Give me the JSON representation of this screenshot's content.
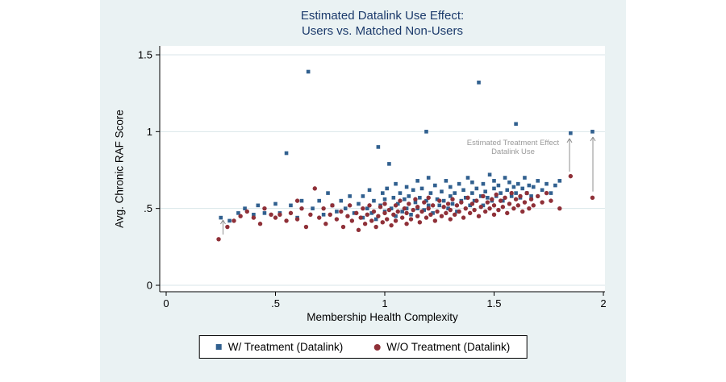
{
  "chart_data": {
    "type": "scatter",
    "title": {
      "line1": "Estimated Datalink Use Effect:",
      "line2": "Users vs. Matched Non-Users",
      "color": "#1b3a6b"
    },
    "x_axis": {
      "label": "Membership Health Complexity",
      "range": [
        0,
        2
      ],
      "tick_values": [
        0,
        0.5,
        1,
        1.5,
        2
      ],
      "tick_labels": [
        "0",
        ".5",
        "1",
        "1.5",
        "2"
      ]
    },
    "y_axis": {
      "label": "Avg. Chronic RAF Score",
      "range": [
        0,
        1.5
      ],
      "tick_values": [
        0,
        0.5,
        1,
        1.5
      ],
      "tick_labels": [
        "0",
        ".5",
        "1",
        "1.5"
      ]
    },
    "grid": "horizontal",
    "legend_position": "bottom",
    "annotation": {
      "line1": "Estimated Treatment Effect",
      "line2": "Datalink Use",
      "color": "#9a9a9a"
    },
    "arrow_color": "#8f8f8f",
    "arrows": [
      {
        "x": 0.26,
        "from": 0.33,
        "to": 0.425
      },
      {
        "x": 1.845,
        "from": 0.74,
        "to": 0.955
      },
      {
        "x": 1.952,
        "from": 0.61,
        "to": 0.965
      }
    ],
    "colors": {
      "background": "#eaf2f3",
      "plot_bg": "#ffffff",
      "grid": "#d9e6ea",
      "axis": "#000000"
    },
    "series": [
      {
        "name": "W/ Treatment (Datalink)",
        "marker": "square",
        "color": "#31608f",
        "points": [
          [
            0.25,
            0.44
          ],
          [
            0.29,
            0.42
          ],
          [
            0.33,
            0.47
          ],
          [
            0.36,
            0.5
          ],
          [
            0.4,
            0.46
          ],
          [
            0.42,
            0.52
          ],
          [
            0.45,
            0.47
          ],
          [
            0.5,
            0.53
          ],
          [
            0.52,
            0.47
          ],
          [
            0.55,
            0.86
          ],
          [
            0.57,
            0.52
          ],
          [
            0.6,
            0.44
          ],
          [
            0.62,
            0.55
          ],
          [
            0.65,
            1.39
          ],
          [
            0.67,
            0.5
          ],
          [
            0.7,
            0.55
          ],
          [
            0.72,
            0.46
          ],
          [
            0.74,
            0.6
          ],
          [
            0.76,
            0.52
          ],
          [
            0.78,
            0.48
          ],
          [
            0.8,
            0.55
          ],
          [
            0.82,
            0.5
          ],
          [
            0.84,
            0.58
          ],
          [
            0.86,
            0.47
          ],
          [
            0.88,
            0.53
          ],
          [
            0.9,
            0.44
          ],
          [
            0.9,
            0.58
          ],
          [
            0.92,
            0.5
          ],
          [
            0.93,
            0.62
          ],
          [
            0.94,
            0.47
          ],
          [
            0.95,
            0.55
          ],
          [
            0.96,
            0.43
          ],
          [
            0.97,
            0.9
          ],
          [
            0.98,
            0.52
          ],
          [
            0.99,
            0.6
          ],
          [
            1.0,
            0.48
          ],
          [
            1.0,
            0.56
          ],
          [
            1.01,
            0.63
          ],
          [
            1.02,
            0.79
          ],
          [
            1.03,
            0.5
          ],
          [
            1.04,
            0.57
          ],
          [
            1.05,
            0.45
          ],
          [
            1.05,
            0.66
          ],
          [
            1.06,
            0.53
          ],
          [
            1.07,
            0.6
          ],
          [
            1.08,
            0.48
          ],
          [
            1.09,
            0.56
          ],
          [
            1.1,
            0.64
          ],
          [
            1.1,
            0.5
          ],
          [
            1.11,
            0.58
          ],
          [
            1.12,
            0.46
          ],
          [
            1.13,
            0.62
          ],
          [
            1.14,
            0.54
          ],
          [
            1.15,
            0.68
          ],
          [
            1.15,
            0.5
          ],
          [
            1.16,
            0.57
          ],
          [
            1.17,
            0.63
          ],
          [
            1.18,
            0.49
          ],
          [
            1.19,
            1.0
          ],
          [
            1.19,
            0.55
          ],
          [
            1.2,
            0.7
          ],
          [
            1.2,
            0.52
          ],
          [
            1.21,
            0.6
          ],
          [
            1.22,
            0.47
          ],
          [
            1.23,
            0.65
          ],
          [
            1.24,
            0.56
          ],
          [
            1.25,
            0.52
          ],
          [
            1.26,
            0.61
          ],
          [
            1.27,
            0.55
          ],
          [
            1.28,
            0.68
          ],
          [
            1.29,
            0.5
          ],
          [
            1.3,
            0.58
          ],
          [
            1.3,
            0.64
          ],
          [
            1.31,
            0.53
          ],
          [
            1.32,
            0.6
          ],
          [
            1.33,
            0.48
          ],
          [
            1.34,
            0.66
          ],
          [
            1.35,
            0.55
          ],
          [
            1.36,
            0.62
          ],
          [
            1.37,
            0.57
          ],
          [
            1.38,
            0.7
          ],
          [
            1.39,
            0.52
          ],
          [
            1.4,
            0.6
          ],
          [
            1.4,
            0.67
          ],
          [
            1.41,
            0.55
          ],
          [
            1.42,
            0.63
          ],
          [
            1.43,
            1.32
          ],
          [
            1.44,
            0.58
          ],
          [
            1.45,
            0.66
          ],
          [
            1.45,
            0.52
          ],
          [
            1.46,
            0.61
          ],
          [
            1.47,
            0.57
          ],
          [
            1.48,
            0.72
          ],
          [
            1.49,
            0.55
          ],
          [
            1.5,
            0.63
          ],
          [
            1.5,
            0.68
          ],
          [
            1.51,
            0.58
          ],
          [
            1.52,
            0.65
          ],
          [
            1.53,
            0.6
          ],
          [
            1.54,
            0.55
          ],
          [
            1.55,
            0.7
          ],
          [
            1.56,
            0.62
          ],
          [
            1.57,
            0.67
          ],
          [
            1.58,
            0.58
          ],
          [
            1.59,
            0.64
          ],
          [
            1.6,
            1.05
          ],
          [
            1.6,
            0.6
          ],
          [
            1.61,
            0.66
          ],
          [
            1.62,
            0.57
          ],
          [
            1.63,
            0.63
          ],
          [
            1.64,
            0.7
          ],
          [
            1.65,
            0.6
          ],
          [
            1.66,
            0.65
          ],
          [
            1.67,
            0.58
          ],
          [
            1.68,
            0.64
          ],
          [
            1.7,
            0.68
          ],
          [
            1.72,
            0.62
          ],
          [
            1.74,
            0.66
          ],
          [
            1.76,
            0.6
          ],
          [
            1.78,
            0.65
          ],
          [
            1.8,
            0.68
          ],
          [
            1.85,
            0.99
          ],
          [
            1.95,
            1.0
          ]
        ]
      },
      {
        "name": "W/O Treatment (Datalink)",
        "marker": "circle",
        "color": "#8f3038",
        "points": [
          [
            0.24,
            0.3
          ],
          [
            0.28,
            0.38
          ],
          [
            0.31,
            0.42
          ],
          [
            0.34,
            0.45
          ],
          [
            0.37,
            0.48
          ],
          [
            0.4,
            0.44
          ],
          [
            0.43,
            0.4
          ],
          [
            0.45,
            0.5
          ],
          [
            0.48,
            0.46
          ],
          [
            0.5,
            0.44
          ],
          [
            0.52,
            0.46
          ],
          [
            0.55,
            0.42
          ],
          [
            0.57,
            0.47
          ],
          [
            0.6,
            0.55
          ],
          [
            0.6,
            0.43
          ],
          [
            0.62,
            0.5
          ],
          [
            0.64,
            0.38
          ],
          [
            0.66,
            0.46
          ],
          [
            0.68,
            0.63
          ],
          [
            0.7,
            0.44
          ],
          [
            0.72,
            0.5
          ],
          [
            0.73,
            0.4
          ],
          [
            0.75,
            0.46
          ],
          [
            0.76,
            0.52
          ],
          [
            0.78,
            0.43
          ],
          [
            0.8,
            0.48
          ],
          [
            0.81,
            0.38
          ],
          [
            0.83,
            0.45
          ],
          [
            0.84,
            0.52
          ],
          [
            0.85,
            0.42
          ],
          [
            0.87,
            0.47
          ],
          [
            0.88,
            0.36
          ],
          [
            0.89,
            0.44
          ],
          [
            0.9,
            0.5
          ],
          [
            0.91,
            0.4
          ],
          [
            0.92,
            0.46
          ],
          [
            0.93,
            0.52
          ],
          [
            0.94,
            0.42
          ],
          [
            0.95,
            0.48
          ],
          [
            0.96,
            0.38
          ],
          [
            0.97,
            0.45
          ],
          [
            0.98,
            0.51
          ],
          [
            0.99,
            0.41
          ],
          [
            1.0,
            0.47
          ],
          [
            1.0,
            0.53
          ],
          [
            1.01,
            0.43
          ],
          [
            1.02,
            0.49
          ],
          [
            1.03,
            0.39
          ],
          [
            1.04,
            0.46
          ],
          [
            1.05,
            0.52
          ],
          [
            1.05,
            0.42
          ],
          [
            1.06,
            0.48
          ],
          [
            1.07,
            0.55
          ],
          [
            1.08,
            0.44
          ],
          [
            1.09,
            0.5
          ],
          [
            1.1,
            0.4
          ],
          [
            1.1,
            0.47
          ],
          [
            1.11,
            0.53
          ],
          [
            1.12,
            0.43
          ],
          [
            1.13,
            0.49
          ],
          [
            1.14,
            0.56
          ],
          [
            1.15,
            0.45
          ],
          [
            1.15,
            0.51
          ],
          [
            1.16,
            0.41
          ],
          [
            1.17,
            0.48
          ],
          [
            1.18,
            0.54
          ],
          [
            1.19,
            0.44
          ],
          [
            1.2,
            0.5
          ],
          [
            1.2,
            0.57
          ],
          [
            1.21,
            0.46
          ],
          [
            1.22,
            0.52
          ],
          [
            1.23,
            0.42
          ],
          [
            1.24,
            0.48
          ],
          [
            1.25,
            0.55
          ],
          [
            1.26,
            0.45
          ],
          [
            1.27,
            0.51
          ],
          [
            1.28,
            0.47
          ],
          [
            1.29,
            0.53
          ],
          [
            1.3,
            0.43
          ],
          [
            1.3,
            0.49
          ],
          [
            1.31,
            0.56
          ],
          [
            1.32,
            0.46
          ],
          [
            1.33,
            0.52
          ],
          [
            1.34,
            0.48
          ],
          [
            1.35,
            0.54
          ],
          [
            1.36,
            0.44
          ],
          [
            1.37,
            0.5
          ],
          [
            1.38,
            0.57
          ],
          [
            1.39,
            0.47
          ],
          [
            1.4,
            0.53
          ],
          [
            1.41,
            0.49
          ],
          [
            1.42,
            0.55
          ],
          [
            1.43,
            0.45
          ],
          [
            1.44,
            0.51
          ],
          [
            1.45,
            0.58
          ],
          [
            1.46,
            0.48
          ],
          [
            1.47,
            0.54
          ],
          [
            1.48,
            0.5
          ],
          [
            1.49,
            0.56
          ],
          [
            1.5,
            0.46
          ],
          [
            1.5,
            0.52
          ],
          [
            1.51,
            0.59
          ],
          [
            1.52,
            0.49
          ],
          [
            1.53,
            0.55
          ],
          [
            1.54,
            0.51
          ],
          [
            1.55,
            0.57
          ],
          [
            1.56,
            0.47
          ],
          [
            1.57,
            0.53
          ],
          [
            1.58,
            0.6
          ],
          [
            1.59,
            0.5
          ],
          [
            1.6,
            0.56
          ],
          [
            1.61,
            0.52
          ],
          [
            1.62,
            0.58
          ],
          [
            1.63,
            0.48
          ],
          [
            1.64,
            0.54
          ],
          [
            1.65,
            0.6
          ],
          [
            1.66,
            0.5
          ],
          [
            1.67,
            0.56
          ],
          [
            1.68,
            0.52
          ],
          [
            1.7,
            0.58
          ],
          [
            1.72,
            0.54
          ],
          [
            1.74,
            0.6
          ],
          [
            1.76,
            0.55
          ],
          [
            1.8,
            0.5
          ],
          [
            1.85,
            0.71
          ],
          [
            1.95,
            0.57
          ]
        ]
      }
    ]
  }
}
